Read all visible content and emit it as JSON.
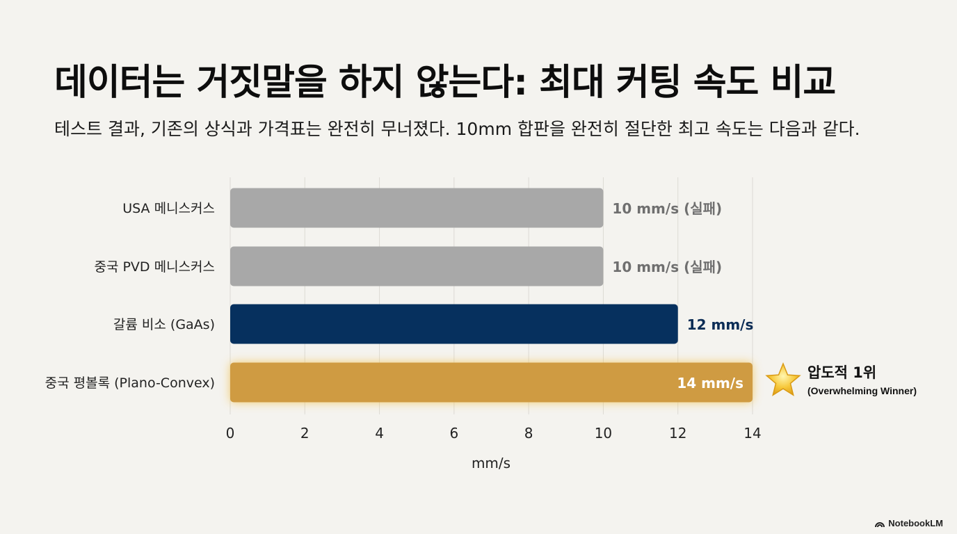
{
  "header": {
    "title": "데이터는 거짓말을 하지 않는다: 최대 커팅 속도 비교",
    "subtitle": "테스트 결과, 기존의 상식과 가격표는 완전히 무너졌다. 10mm 합판을 완전히 절단한 최고 속도는 다음과 같다."
  },
  "chart_data": {
    "type": "bar",
    "orientation": "horizontal",
    "categories": [
      "USA 메니스커스",
      "중국 PVD 메니스커스",
      "갈륨 비소 (GaAs)",
      "중국 평볼록 (Plano-Convex)"
    ],
    "values": [
      10,
      10,
      12,
      14
    ],
    "data_labels": [
      "10 mm/s (실패)",
      "10 mm/s (실패)",
      "12 mm/s",
      "14 mm/s"
    ],
    "bar_colors": [
      "#a8a8a8",
      "#a8a8a8",
      "#06305e",
      "#cf9b42"
    ],
    "label_colors": [
      "#6f6f6f",
      "#6f6f6f",
      "#0b2c55",
      "#ffffff"
    ],
    "xlabel": "mm/s",
    "xlim": [
      0,
      14
    ],
    "xticks": [
      0,
      2,
      4,
      6,
      8,
      10,
      12,
      14
    ],
    "grid": true,
    "annotation": {
      "title": "압도적 1위",
      "subtitle": "(Overwhelming Winner)",
      "icon": "star-icon"
    }
  },
  "footer": {
    "brand": "NotebookLM"
  }
}
